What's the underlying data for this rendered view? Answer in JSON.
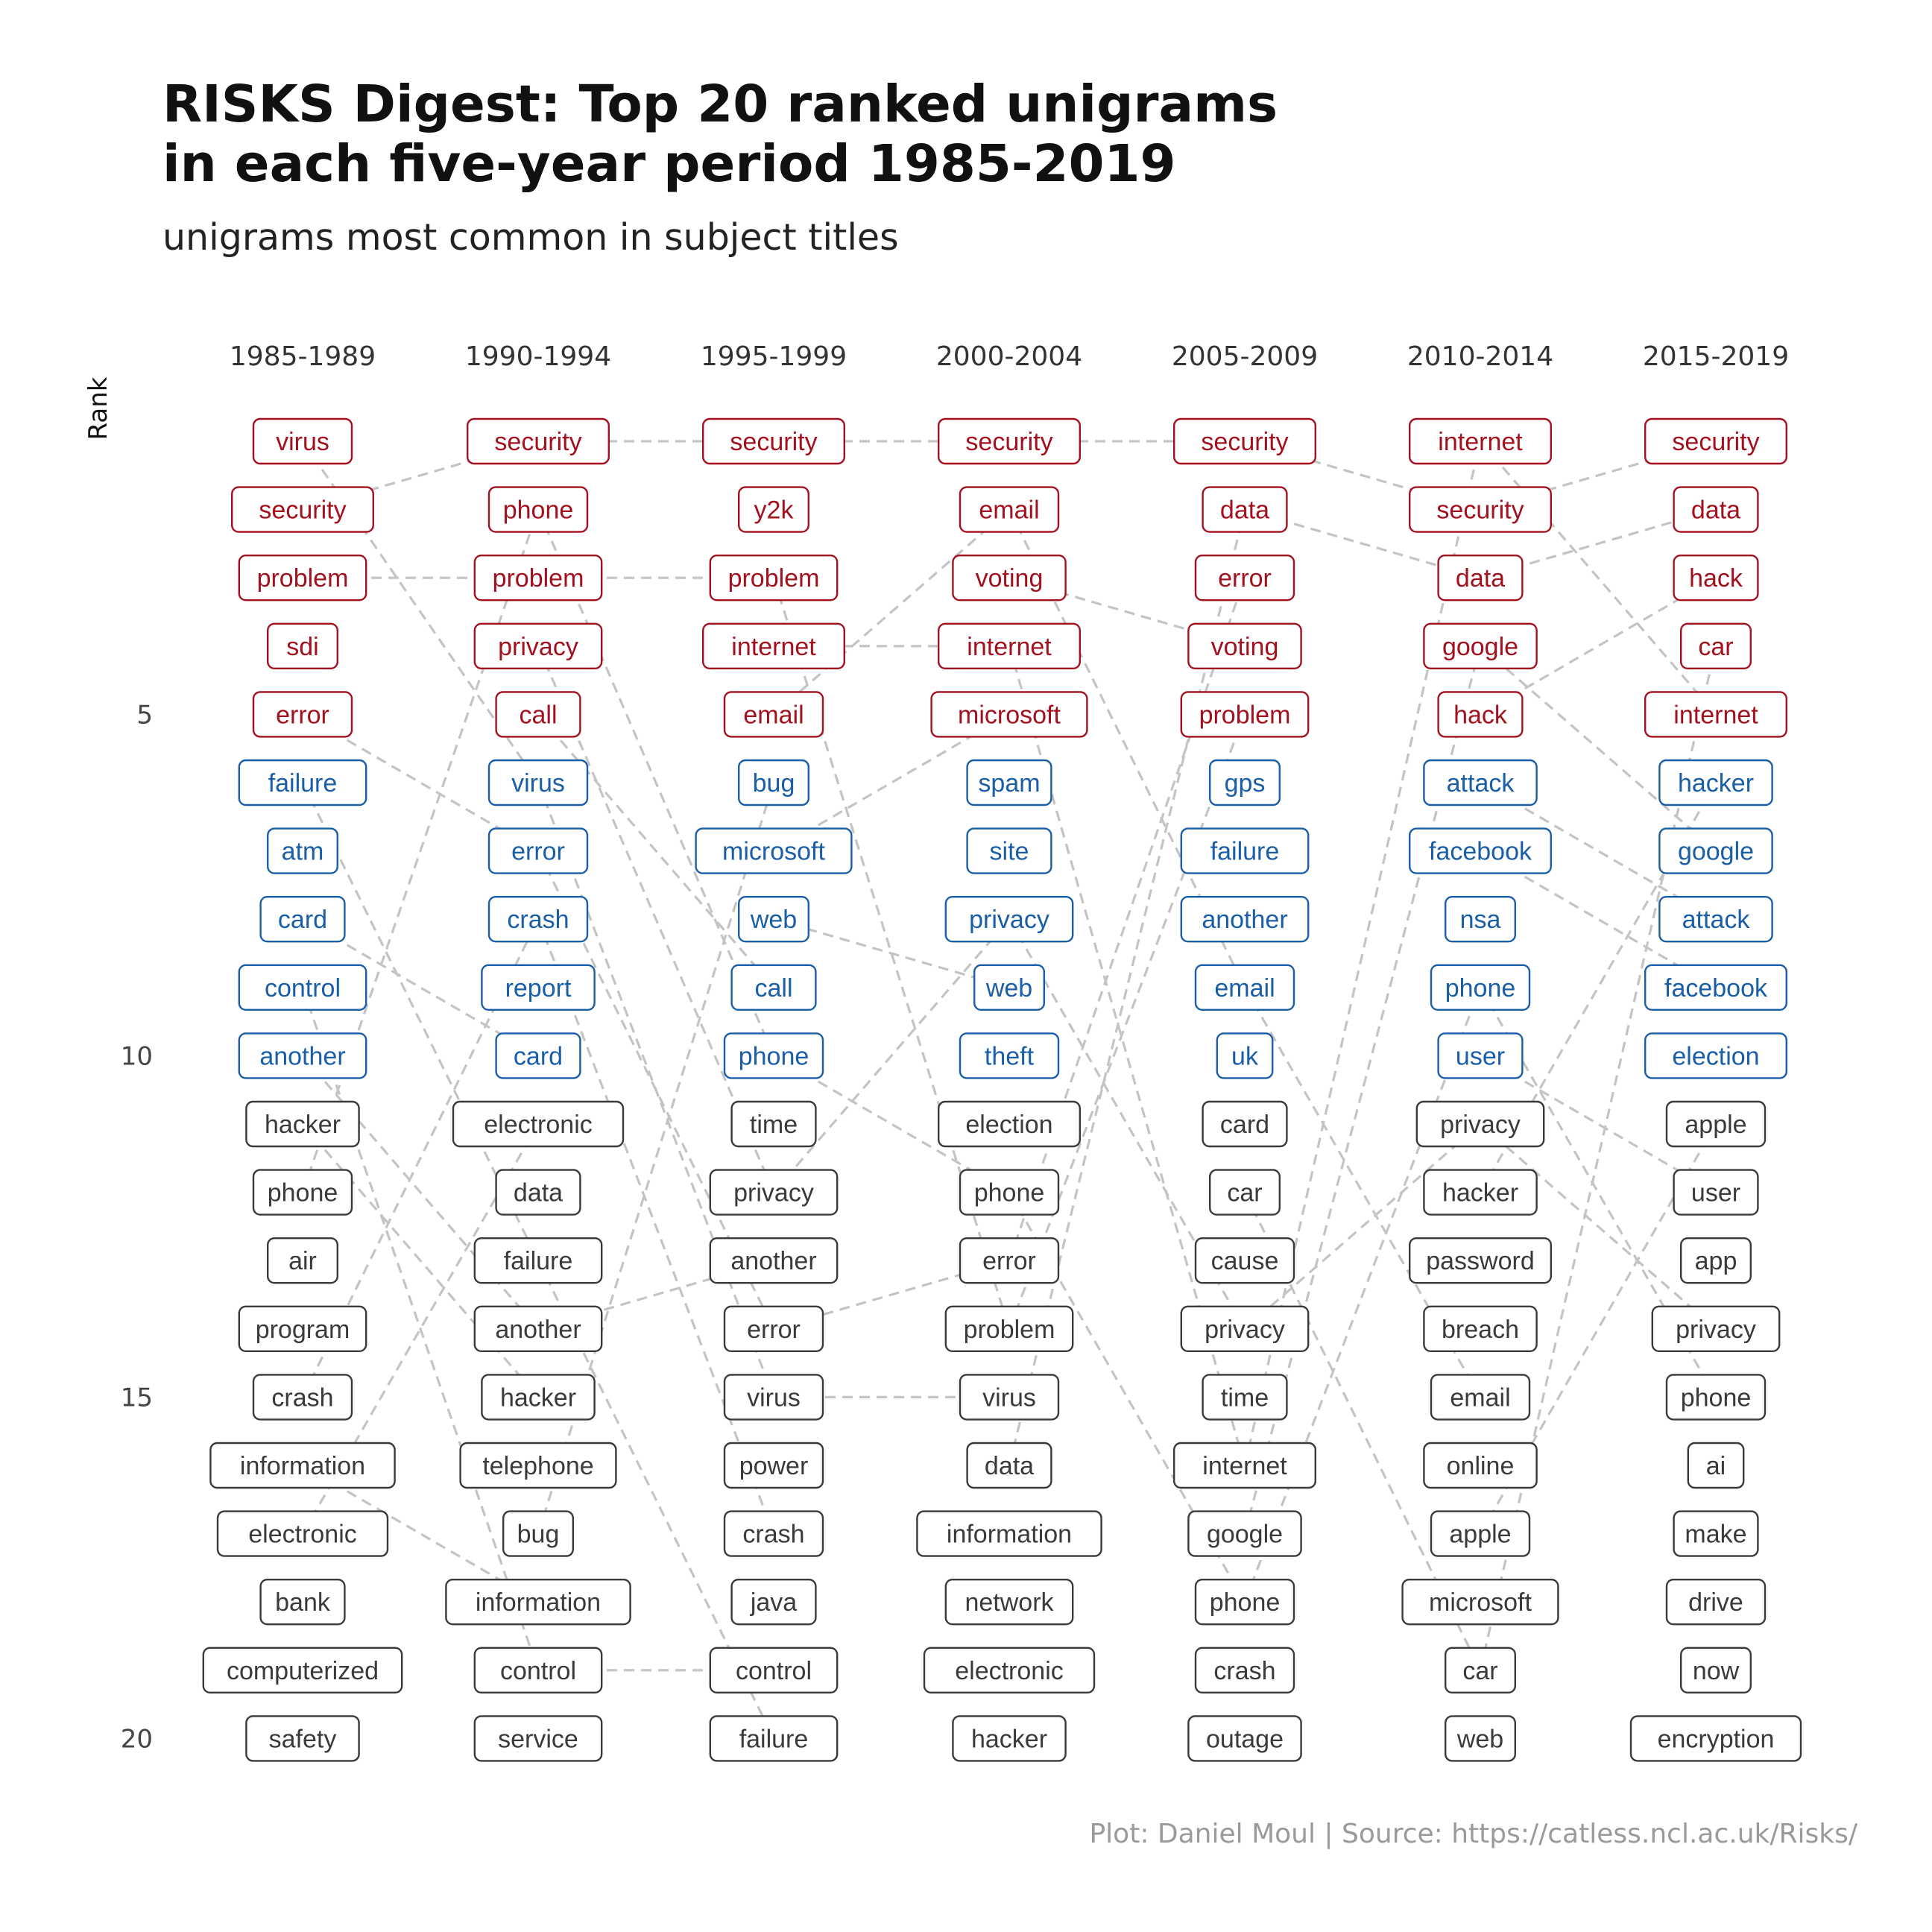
{
  "title_line1": "RISKS Digest: Top 20 ranked unigrams",
  "title_line2": "in each five-year period 1985-2019",
  "subtitle": "unigrams most common in subject titles",
  "caption": "Plot: Daniel Moul | Source: https://catless.ncl.ac.uk/Risks/",
  "colors": {
    "top": "#a3111f",
    "mid": "#1a5ea8",
    "low": "#3a3a3a",
    "link": "#c4c4c4"
  },
  "chart_data": {
    "type": "bump",
    "ylabel": "Rank",
    "y_ticks": [
      5,
      10,
      15,
      20
    ],
    "periods": [
      "1985-1989",
      "1990-1994",
      "1995-1999",
      "2000-2004",
      "2005-2009",
      "2010-2014",
      "2015-2019"
    ],
    "rankings": [
      [
        "virus",
        "security",
        "problem",
        "sdi",
        "error",
        "failure",
        "atm",
        "card",
        "control",
        "another",
        "hacker",
        "phone",
        "air",
        "program",
        "crash",
        "information",
        "electronic",
        "bank",
        "computerized",
        "safety"
      ],
      [
        "security",
        "phone",
        "problem",
        "privacy",
        "call",
        "virus",
        "error",
        "crash",
        "report",
        "card",
        "electronic",
        "data",
        "failure",
        "another",
        "hacker",
        "telephone",
        "bug",
        "information",
        "control",
        "service"
      ],
      [
        "security",
        "y2k",
        "problem",
        "internet",
        "email",
        "bug",
        "microsoft",
        "web",
        "call",
        "phone",
        "time",
        "privacy",
        "another",
        "error",
        "virus",
        "power",
        "crash",
        "java",
        "control",
        "failure"
      ],
      [
        "security",
        "email",
        "voting",
        "internet",
        "microsoft",
        "spam",
        "site",
        "privacy",
        "web",
        "theft",
        "election",
        "phone",
        "error",
        "problem",
        "virus",
        "data",
        "information",
        "network",
        "electronic",
        "hacker"
      ],
      [
        "security",
        "data",
        "error",
        "voting",
        "problem",
        "gps",
        "failure",
        "another",
        "email",
        "uk",
        "card",
        "car",
        "cause",
        "privacy",
        "time",
        "internet",
        "google",
        "phone",
        "crash",
        "outage"
      ],
      [
        "internet",
        "security",
        "data",
        "google",
        "hack",
        "attack",
        "facebook",
        "nsa",
        "phone",
        "user",
        "privacy",
        "hacker",
        "password",
        "breach",
        "email",
        "online",
        "apple",
        "microsoft",
        "car",
        "web"
      ],
      [
        "security",
        "data",
        "hack",
        "car",
        "internet",
        "hacker",
        "google",
        "attack",
        "facebook",
        "election",
        "apple",
        "user",
        "app",
        "privacy",
        "phone",
        "ai",
        "make",
        "drive",
        "now",
        "encryption"
      ]
    ],
    "color_groups": {
      "ranks_1_to_5": "top",
      "ranks_6_to_10": "mid",
      "ranks_11_to_20": "low"
    },
    "links": "dashed lines connect the same unigram between adjacent periods",
    "grid": false
  }
}
